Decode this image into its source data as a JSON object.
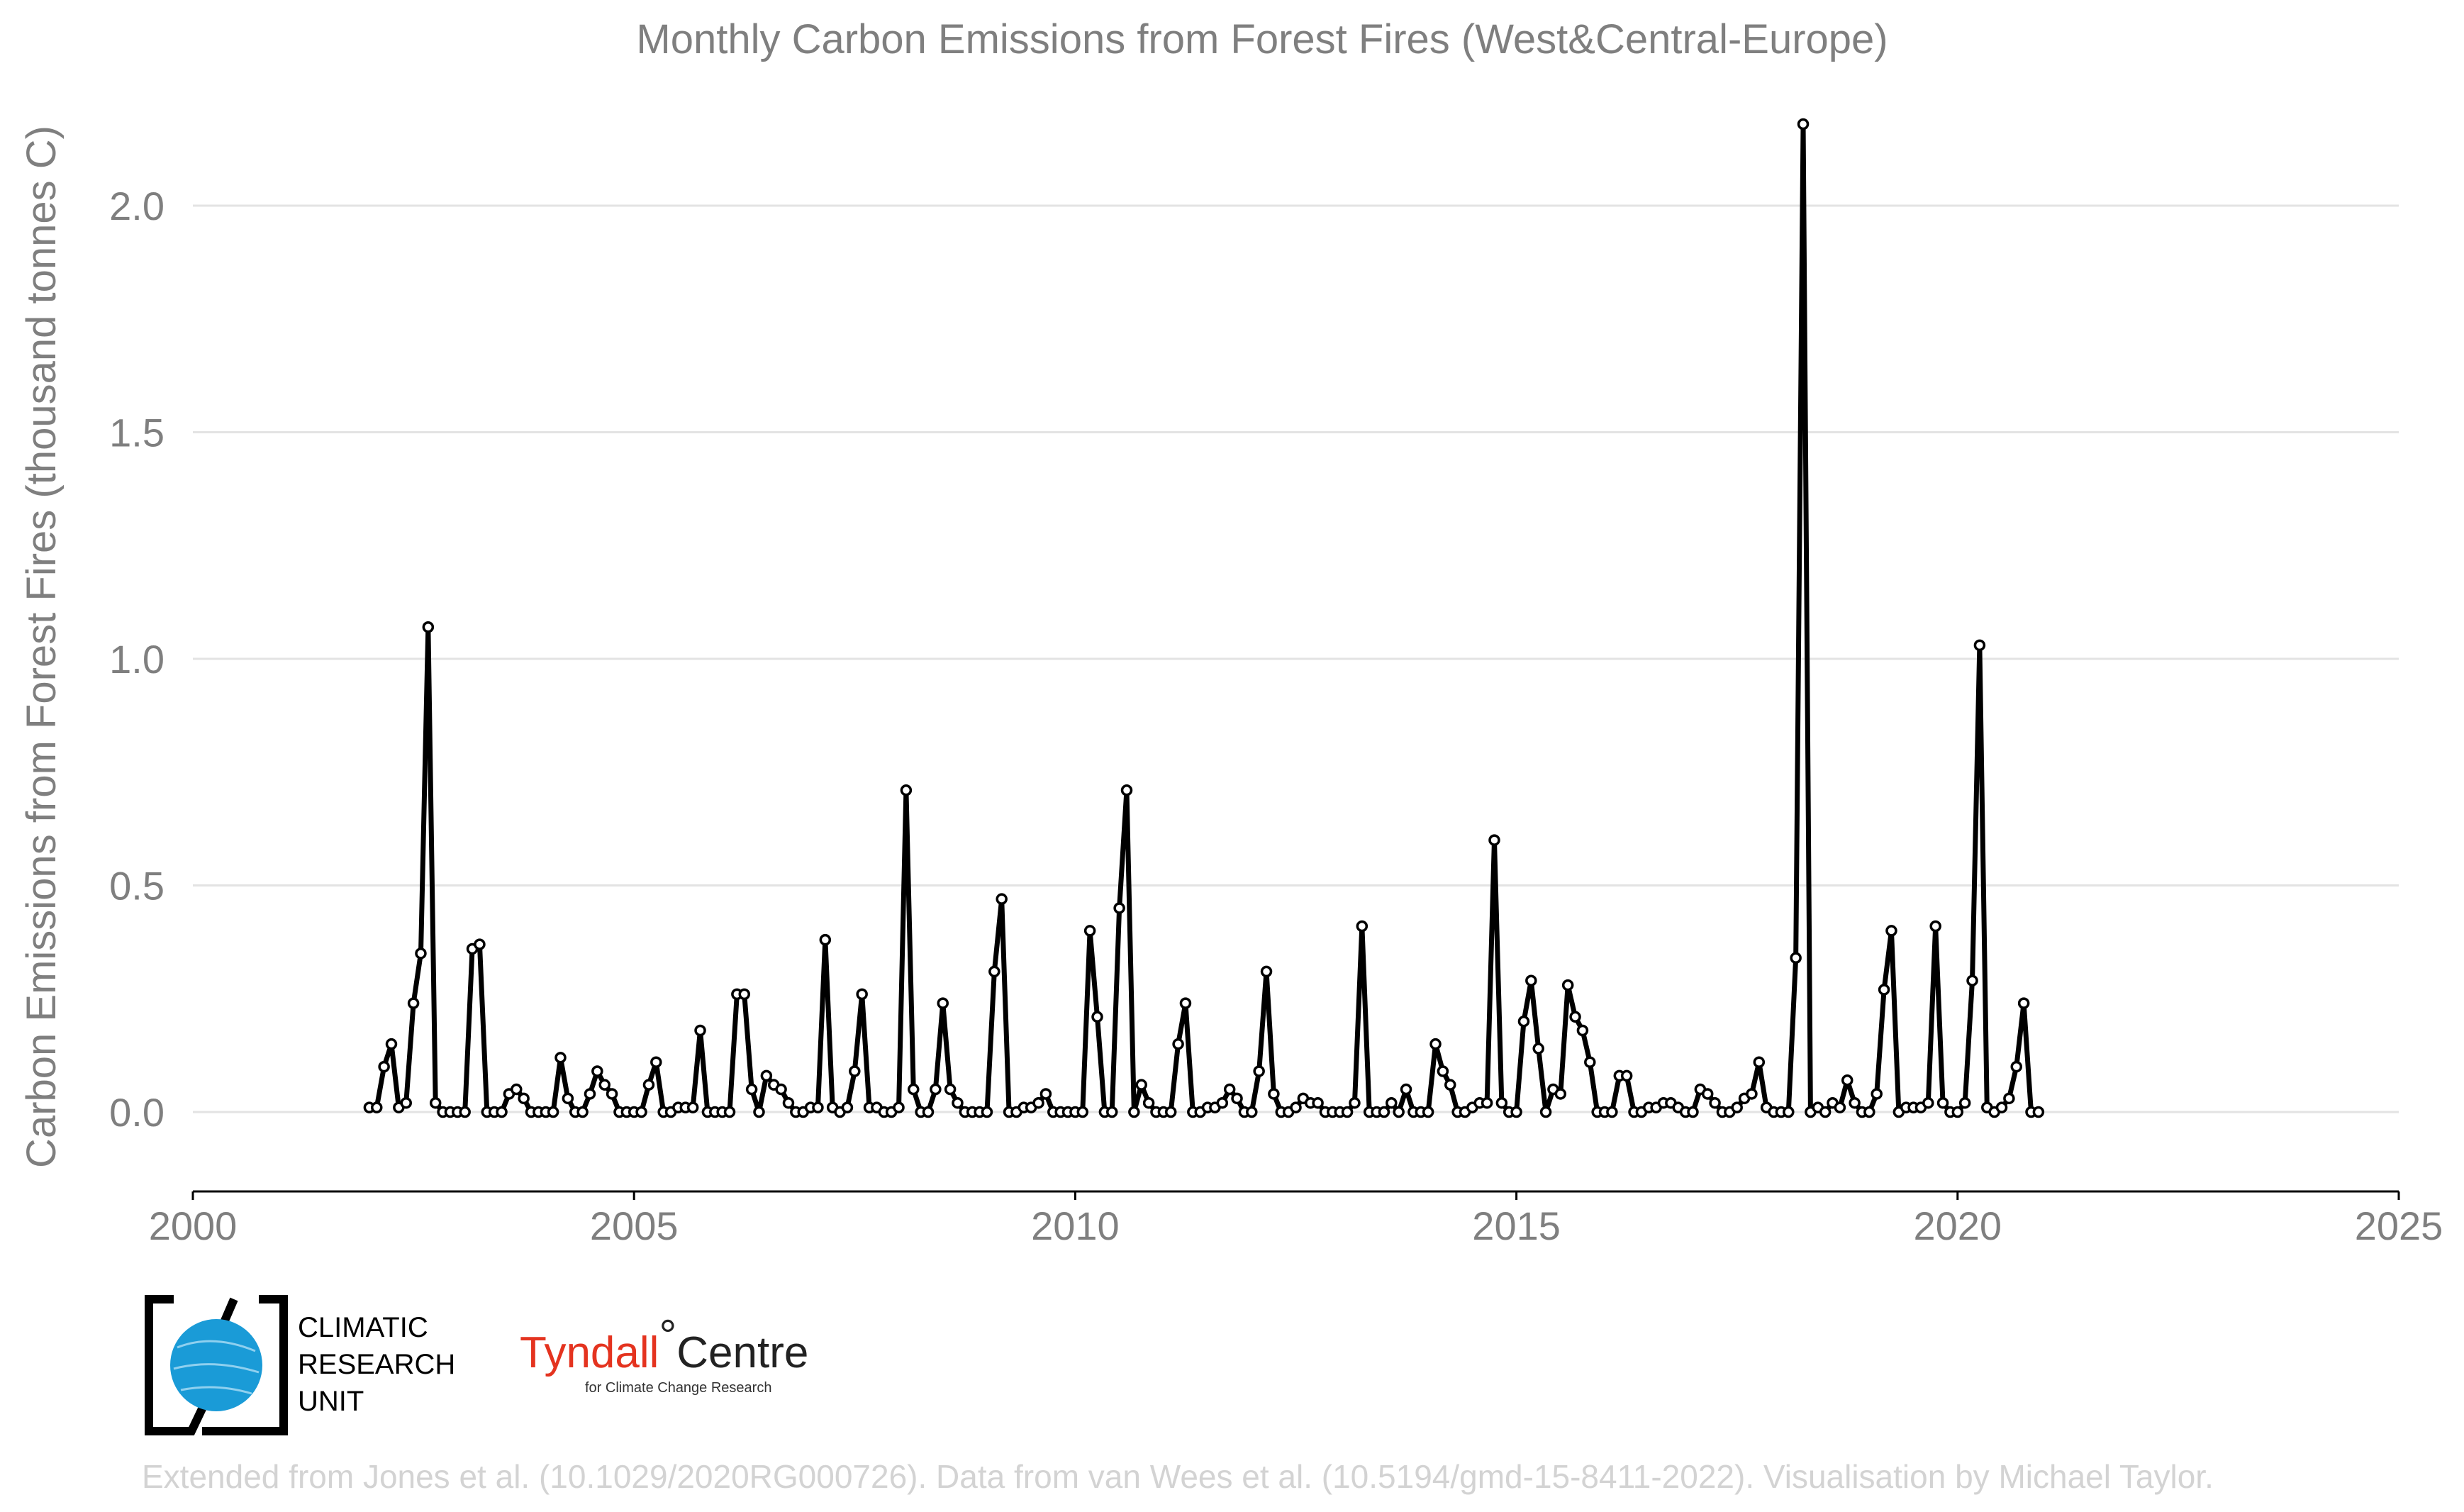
{
  "title": "Monthly Carbon Emissions from Forest Fires (West&Central-Europe)",
  "ylabel": "Carbon Emissions from Forest Fires (thousand tonnes C)",
  "credit": "Extended from Jones et al. (10.1029/2020RG000726). Data from van Wees et al. (10.5194/gmd-15-8411-2022). Visualisation by Michael Taylor.",
  "logos": {
    "cru_lines": [
      "CLIMATIC",
      "RESEARCH",
      "UNIT"
    ],
    "tyndall_red": "Tyndall",
    "tyndall_degree": "°",
    "tyndall_black": "Centre",
    "tyndall_sub": "for Climate Change Research"
  },
  "colors": {
    "line": "#000000",
    "text": "#7f7f7f",
    "grid": "#e3e3e3",
    "tyndall": "#e4331f",
    "globe": "#1a9bd7"
  },
  "chart_data": {
    "type": "line",
    "xlim": [
      2000,
      2025
    ],
    "ylim": [
      -0.15,
      2.2
    ],
    "xticks": [
      2000,
      2005,
      2010,
      2015,
      2020,
      2025
    ],
    "xtick_labels": [
      "2000",
      "2005",
      "2010",
      "2015",
      "2020",
      "2025"
    ],
    "yticks": [
      0.0,
      0.5,
      1.0,
      1.5,
      2.0
    ],
    "ytick_labels": [
      "0.0",
      "0.5",
      "1.0",
      "1.5",
      "2.0"
    ],
    "grid": "horizontal",
    "series": [
      {
        "start": "2002-01",
        "frequency": "monthly",
        "values": [
          0.01,
          0.01,
          0.1,
          0.15,
          0.01,
          0.02,
          0.24,
          0.35,
          1.07,
          0.02,
          0.0,
          0.0,
          0.0,
          0.0,
          0.36,
          0.37,
          0.0,
          0.0,
          0.0,
          0.04,
          0.05,
          0.03,
          0.0,
          0.0,
          0.0,
          0.0,
          0.12,
          0.03,
          0.0,
          0.0,
          0.04,
          0.09,
          0.06,
          0.04,
          0.0,
          0.0,
          0.0,
          0.0,
          0.06,
          0.11,
          0.0,
          0.0,
          0.01,
          0.01,
          0.01,
          0.18,
          0.0,
          0.0,
          0.0,
          0.0,
          0.26,
          0.26,
          0.05,
          0.0,
          0.08,
          0.06,
          0.05,
          0.02,
          0.0,
          0.0,
          0.01,
          0.01,
          0.38,
          0.01,
          0.0,
          0.01,
          0.09,
          0.26,
          0.01,
          0.01,
          0.0,
          0.0,
          0.01,
          0.71,
          0.05,
          0.0,
          0.0,
          0.05,
          0.24,
          0.05,
          0.02,
          0.0,
          0.0,
          0.0,
          0.0,
          0.31,
          0.47,
          0.0,
          0.0,
          0.01,
          0.01,
          0.02,
          0.04,
          0.0,
          0.0,
          0.0,
          0.0,
          0.0,
          0.4,
          0.21,
          0.0,
          0.0,
          0.45,
          0.71,
          0.0,
          0.06,
          0.02,
          0.0,
          0.0,
          0.0,
          0.15,
          0.24,
          0.0,
          0.0,
          0.01,
          0.01,
          0.02,
          0.05,
          0.03,
          0.0,
          0.0,
          0.09,
          0.31,
          0.04,
          0.0,
          0.0,
          0.01,
          0.03,
          0.02,
          0.02,
          0.0,
          0.0,
          0.0,
          0.0,
          0.02,
          0.41,
          0.0,
          0.0,
          0.0,
          0.02,
          0.0,
          0.05,
          0.0,
          0.0,
          0.0,
          0.15,
          0.09,
          0.06,
          0.0,
          0.0,
          0.01,
          0.02,
          0.02,
          0.6,
          0.02,
          0.0,
          0.0,
          0.2,
          0.29,
          0.14,
          0.0,
          0.05,
          0.04,
          0.28,
          0.21,
          0.18,
          0.11,
          0.0,
          0.0,
          0.0,
          0.08,
          0.08,
          0.0,
          0.0,
          0.01,
          0.01,
          0.02,
          0.02,
          0.01,
          0.0,
          0.0,
          0.05,
          0.04,
          0.02,
          0.0,
          0.0,
          0.01,
          0.03,
          0.04,
          0.11,
          0.01,
          0.0,
          0.0,
          0.0,
          0.34,
          2.18,
          0.0,
          0.01,
          0.0,
          0.02,
          0.01,
          0.07,
          0.02,
          0.0,
          0.0,
          0.04,
          0.27,
          0.4,
          0.0,
          0.01,
          0.01,
          0.01,
          0.02,
          0.41,
          0.02,
          0.0,
          0.0,
          0.02,
          0.29,
          1.03,
          0.01,
          0.0,
          0.01,
          0.03,
          0.1,
          0.24,
          0.0,
          0.0
        ]
      }
    ]
  }
}
